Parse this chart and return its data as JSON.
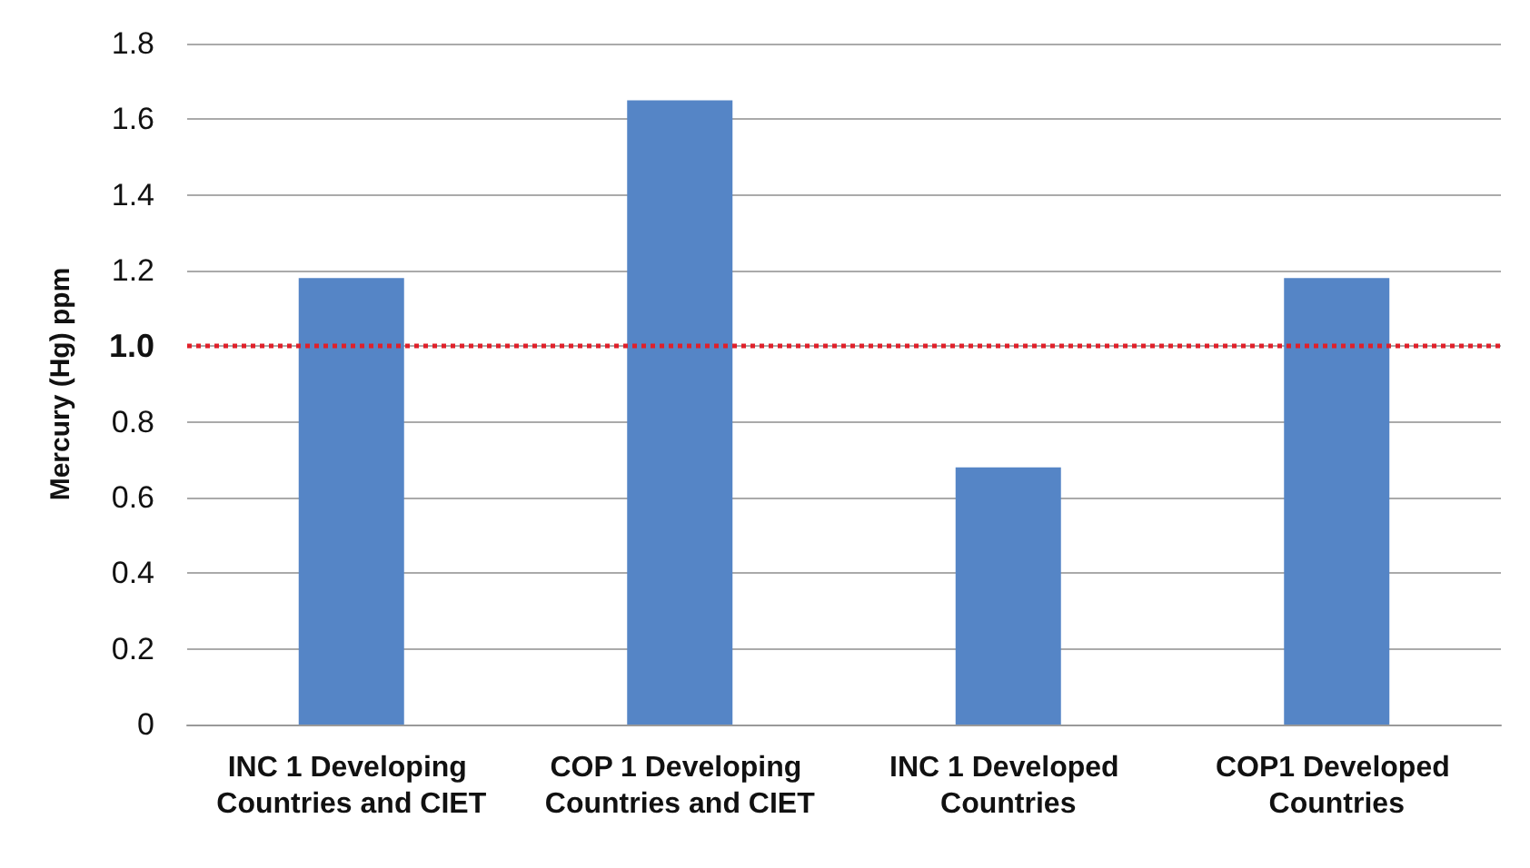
{
  "chart_data": {
    "type": "bar",
    "ylabel": "Mercury (Hg) ppm",
    "categories": [
      "INC 1 Developing Countries and CIET",
      "COP 1 Developing Countries and CIET",
      "INC 1 Developed Countries",
      "COP1 Developed Countries"
    ],
    "values": [
      1.18,
      1.65,
      0.68,
      1.18
    ],
    "color": "#5585c6",
    "ylim": [
      0,
      1.8
    ],
    "yticks": [
      0,
      0.2,
      0.4,
      0.6,
      0.8,
      {
        "value": 1,
        "label": "1.0"
      },
      1.2,
      1.4,
      1.6,
      1.8
    ],
    "grid": "y",
    "ref_lines": [
      {
        "axis": "y",
        "value": 1,
        "color": "#e0202a",
        "line_style": "dotted"
      }
    ]
  }
}
